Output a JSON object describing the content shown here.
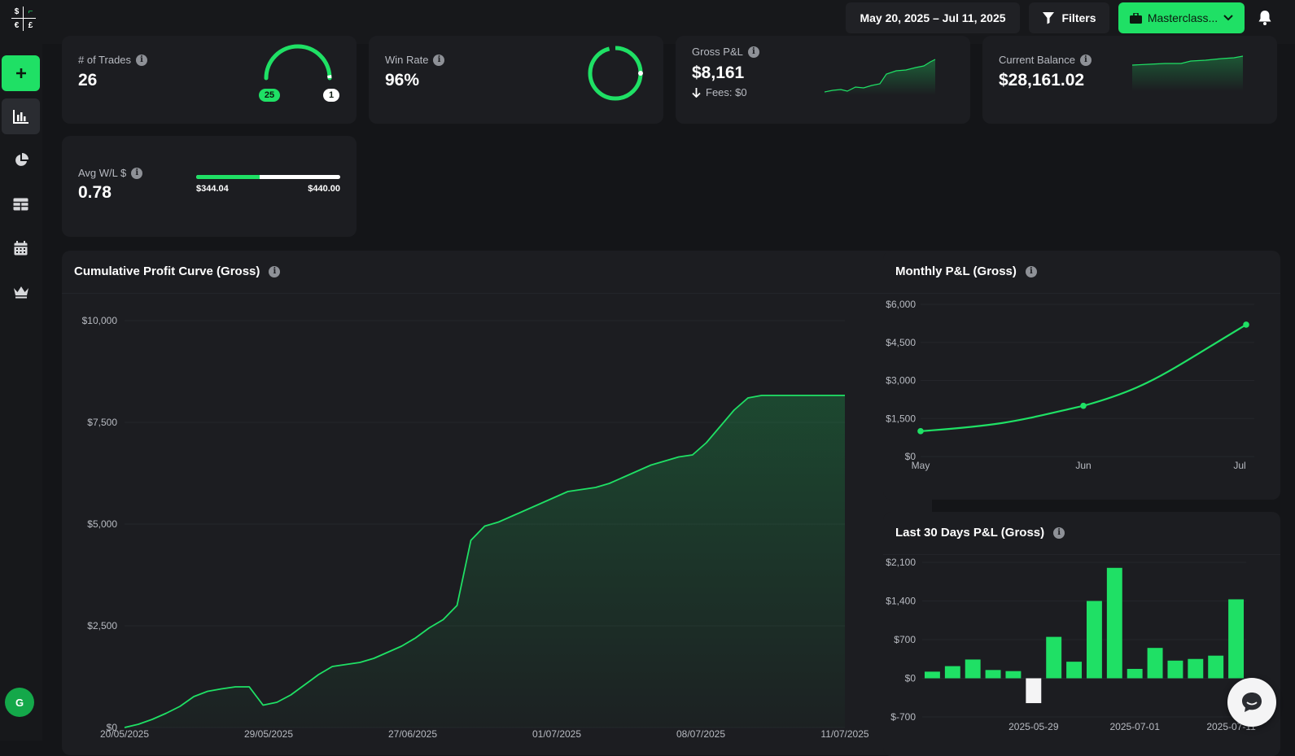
{
  "header": {
    "date_range": "May 20, 2025 – Jul 11, 2025",
    "filters_label": "Filters",
    "account_label": "Masterclass..."
  },
  "logo": {
    "tl": "$",
    "tr": "⌐",
    "bl": "€",
    "br": "£"
  },
  "sidebar": {
    "items": [
      {
        "name": "add",
        "icon": "plus-icon"
      },
      {
        "name": "dashboard",
        "icon": "bar-chart-icon",
        "active": true
      },
      {
        "name": "reports",
        "icon": "pie-chart-icon"
      },
      {
        "name": "trades",
        "icon": "table-icon"
      },
      {
        "name": "calendar",
        "icon": "calendar-icon"
      },
      {
        "name": "premium",
        "icon": "crown-icon"
      }
    ],
    "avatar_initial": "G"
  },
  "kpis": {
    "trades": {
      "label": "# of Trades",
      "value": "26",
      "wins": "25",
      "losses": "1"
    },
    "win_rate": {
      "label": "Win Rate",
      "value": "96%",
      "fraction": 0.96
    },
    "gross_pnl": {
      "label": "Gross P&L",
      "value": "$8,161",
      "fees": "Fees: $0"
    },
    "balance": {
      "label": "Current Balance",
      "value": "$28,161.02"
    },
    "avg_wl": {
      "label": "Avg W/L $",
      "value": "0.78",
      "avg_win": "$344.04",
      "avg_loss": "$440.00",
      "win_fraction": 0.44
    }
  },
  "colors": {
    "accent": "#1fe065",
    "background": "#141518",
    "card": "#1c1d21",
    "loss_bar": "#f4f4f5"
  },
  "charts": {
    "cumulative": {
      "title": "Cumulative Profit Curve (Gross)"
    },
    "monthly": {
      "title": "Monthly P&L (Gross)"
    },
    "last30": {
      "title": "Last 30 Days P&L (Gross)"
    }
  },
  "chart_data": [
    {
      "type": "area",
      "title": "Cumulative Profit Curve (Gross)",
      "x_tick_labels": [
        "20/05/2025",
        "29/05/2025",
        "27/06/2025",
        "01/07/2025",
        "08/07/2025",
        "11/07/2025"
      ],
      "y_tick_labels": [
        "$0",
        "$2,500",
        "$5,000",
        "$7,500",
        "$10,000"
      ],
      "ylim": [
        0,
        10000
      ],
      "x": [
        0,
        0.5,
        1,
        1.5,
        2,
        2.5,
        3,
        3.5,
        4,
        4.5,
        5,
        5.5,
        6,
        6.5,
        7,
        7.5,
        8,
        8.5,
        9,
        9.5,
        10,
        10.5,
        11,
        11.5,
        12,
        12.5,
        13,
        13.5,
        14,
        14.5,
        15,
        15.5,
        16,
        16.5,
        17,
        17.5,
        18,
        18.5,
        19,
        19.5,
        20,
        20.5,
        21,
        21.5,
        22,
        22.5,
        23,
        23.5,
        24,
        24.5,
        25,
        25.5,
        26
      ],
      "values": [
        0,
        80,
        200,
        350,
        520,
        760,
        890,
        950,
        1000,
        1000,
        550,
        620,
        800,
        1050,
        1300,
        1500,
        1550,
        1600,
        1700,
        1850,
        2000,
        2200,
        2450,
        2650,
        3000,
        4600,
        4950,
        5050,
        5200,
        5350,
        5500,
        5650,
        5800,
        5850,
        5900,
        6000,
        6150,
        6300,
        6450,
        6550,
        6650,
        6700,
        7000,
        7400,
        7800,
        8100,
        8161,
        8161,
        8161,
        8161,
        8161,
        8161,
        8161
      ],
      "grid": true
    },
    {
      "type": "line",
      "title": "Monthly P&L (Gross)",
      "categories": [
        "May",
        "Jun",
        "Jul"
      ],
      "values": [
        1000,
        2000,
        5200
      ],
      "y_tick_labels": [
        "$0",
        "$1,500",
        "$3,000",
        "$4,500",
        "$6,000"
      ],
      "ylim": [
        0,
        6000
      ],
      "grid": true
    },
    {
      "type": "bar",
      "title": "Last 30 Days P&L (Gross)",
      "x_tick_labels": [
        "2025-05-29",
        "2025-07-01",
        "2025-07-11"
      ],
      "y_tick_labels": [
        "$-700",
        "$0",
        "$700",
        "$1,400",
        "$2,100"
      ],
      "ylim": [
        -700,
        2100
      ],
      "values": [
        120,
        220,
        340,
        150,
        130,
        -450,
        750,
        300,
        1400,
        2000,
        170,
        550,
        320,
        350,
        410,
        1430
      ],
      "grid": true
    }
  ]
}
